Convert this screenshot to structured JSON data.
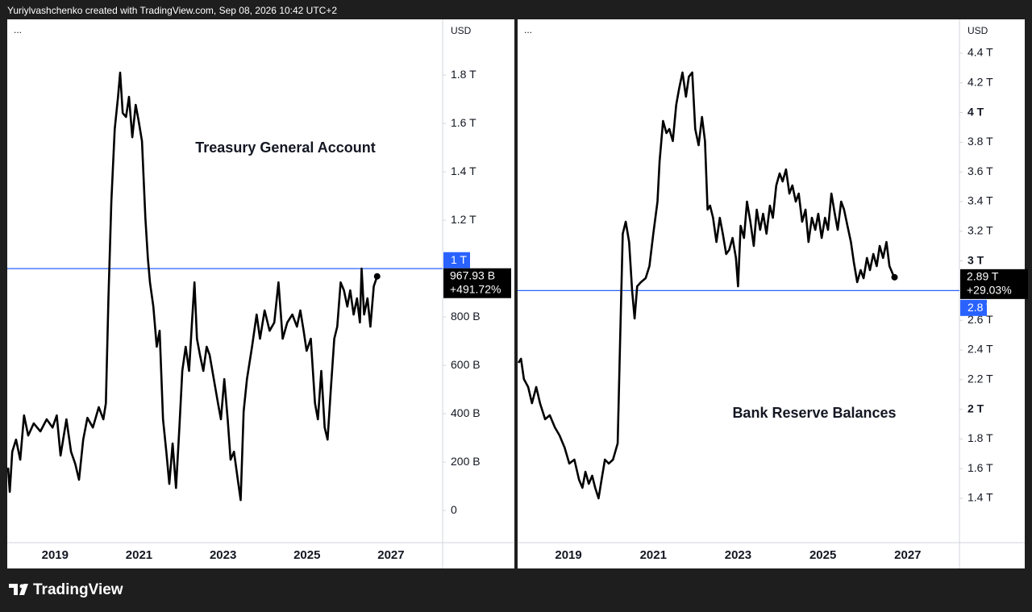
{
  "header": "Yuriylvashchenko created with TradingView.com, Sep 08, 2026 10:42 UTC+2",
  "footer": {
    "logo": "TradingView"
  },
  "chart_data": [
    {
      "type": "line",
      "title": "Treasury General Account",
      "menu": "...",
      "currency": "USD",
      "color": "#000000",
      "x": [
        2017.88,
        2017.92,
        2017.98,
        2018.07,
        2018.17,
        2018.26,
        2018.36,
        2018.49,
        2018.65,
        2018.8,
        2018.94,
        2019.04,
        2019.13,
        2019.27,
        2019.38,
        2019.48,
        2019.57,
        2019.67,
        2019.77,
        2019.9,
        2020.04,
        2020.15,
        2020.21,
        2020.27,
        2020.34,
        2020.42,
        2020.5,
        2020.55,
        2020.61,
        2020.69,
        2020.76,
        2020.84,
        2020.92,
        2020.99,
        2021.07,
        2021.15,
        2021.21,
        2021.26,
        2021.34,
        2021.42,
        2021.49,
        2021.57,
        2021.65,
        2021.72,
        2021.8,
        2021.88,
        2021.96,
        2022.03,
        2022.11,
        2022.19,
        2022.26,
        2022.32,
        2022.38,
        2022.45,
        2022.53,
        2022.61,
        2022.68,
        2022.78,
        2022.88,
        2022.95,
        2023.03,
        2023.11,
        2023.18,
        2023.26,
        2023.34,
        2023.42,
        2023.49,
        2023.57,
        2023.69,
        2023.8,
        2023.88,
        2023.99,
        2024.11,
        2024.22,
        2024.32,
        2024.42,
        2024.53,
        2024.65,
        2024.76,
        2024.84,
        2024.92,
        2024.99,
        2025.09,
        2025.19,
        2025.26,
        2025.34,
        2025.42,
        2025.49,
        2025.57,
        2025.65,
        2025.72,
        2025.8,
        2025.88,
        2025.96,
        2026.03,
        2026.11,
        2026.19,
        2026.26,
        2026.3,
        2026.36,
        2026.44,
        2026.51,
        2026.59,
        2026.67
      ],
      "values": [
        177,
        77,
        243,
        293,
        210,
        393,
        310,
        360,
        327,
        377,
        343,
        393,
        227,
        377,
        243,
        193,
        127,
        293,
        383,
        343,
        427,
        377,
        443,
        877,
        1277,
        1577,
        1710,
        1810,
        1643,
        1627,
        1710,
        1543,
        1677,
        1610,
        1527,
        1210,
        1043,
        943,
        843,
        677,
        743,
        377,
        243,
        110,
        277,
        93,
        343,
        577,
        677,
        577,
        777,
        943,
        710,
        643,
        577,
        677,
        643,
        543,
        443,
        377,
        543,
        377,
        210,
        243,
        143,
        43,
        410,
        543,
        677,
        810,
        710,
        827,
        743,
        777,
        943,
        710,
        777,
        810,
        760,
        827,
        743,
        660,
        710,
        443,
        377,
        577,
        343,
        293,
        510,
        710,
        760,
        943,
        910,
        843,
        910,
        810,
        877,
        777,
        1000,
        810,
        877,
        760,
        927,
        967.93
      ],
      "xlim": [
        2017.88,
        2028.23
      ],
      "xticks": [
        2019,
        2021,
        2023,
        2025,
        2027
      ],
      "ylim": [
        -133,
        2027
      ],
      "yticks": [
        0,
        {
          "value": 200,
          "label": "200 B"
        },
        {
          "value": 400,
          "label": "400 B"
        },
        {
          "value": 600,
          "label": "600 B"
        },
        {
          "value": 800,
          "label": "800 B"
        },
        {
          "value": 1200,
          "label": "1.2 T"
        },
        {
          "value": 1400,
          "label": "1.4 T"
        },
        {
          "value": 1600,
          "label": "1.6 T"
        },
        {
          "value": 1800,
          "label": "1.8 T"
        }
      ],
      "hline": {
        "value": 1000,
        "label": "1 T",
        "color": "#2962ff"
      },
      "last_value": {
        "value": 967.93,
        "label": "967.93 B"
      },
      "change": {
        "value": 491.72,
        "label": "+491.72%"
      }
    },
    {
      "type": "line",
      "title": "Bank Reserve Balances",
      "menu": "...",
      "currency": "USD",
      "color": "#000000",
      "x": [
        2017.82,
        2017.88,
        2017.95,
        2018.05,
        2018.14,
        2018.24,
        2018.33,
        2018.45,
        2018.56,
        2018.68,
        2018.79,
        2018.91,
        2019.02,
        2019.14,
        2019.25,
        2019.33,
        2019.4,
        2019.48,
        2019.56,
        2019.63,
        2019.71,
        2019.78,
        2019.86,
        2019.95,
        2020.05,
        2020.16,
        2020.22,
        2020.28,
        2020.35,
        2020.43,
        2020.5,
        2020.56,
        2020.62,
        2020.71,
        2020.82,
        2020.91,
        2021.0,
        2021.1,
        2021.15,
        2021.23,
        2021.31,
        2021.38,
        2021.46,
        2021.54,
        2021.61,
        2021.69,
        2021.77,
        2021.84,
        2021.92,
        2021.99,
        2022.07,
        2022.15,
        2022.22,
        2022.28,
        2022.34,
        2022.41,
        2022.49,
        2022.57,
        2022.64,
        2022.72,
        2022.79,
        2022.87,
        2022.95,
        2023.0,
        2023.06,
        2023.14,
        2023.21,
        2023.29,
        2023.37,
        2023.44,
        2023.52,
        2023.59,
        2023.67,
        2023.75,
        2023.82,
        2023.9,
        2023.98,
        2024.05,
        2024.13,
        2024.21,
        2024.28,
        2024.36,
        2024.43,
        2024.51,
        2024.59,
        2024.66,
        2024.74,
        2024.82,
        2024.89,
        2024.97,
        2025.05,
        2025.12,
        2025.2,
        2025.28,
        2025.35,
        2025.43,
        2025.5,
        2025.58,
        2025.66,
        2025.73,
        2025.81,
        2025.89,
        2025.96,
        2026.04,
        2026.11,
        2026.19,
        2026.27,
        2026.34,
        2026.42,
        2026.5,
        2026.57,
        2026.65,
        2026.69
      ],
      "values": [
        2313,
        2340,
        2204,
        2150,
        2041,
        2150,
        2041,
        1933,
        1960,
        1878,
        1824,
        1742,
        1634,
        1661,
        1525,
        1471,
        1579,
        1498,
        1552,
        1471,
        1400,
        1525,
        1661,
        1634,
        1661,
        1770,
        2476,
        3183,
        3264,
        3128,
        2802,
        2612,
        2829,
        2857,
        2884,
        2965,
        3183,
        3400,
        3672,
        3943,
        3862,
        3889,
        3808,
        4052,
        4161,
        4270,
        4107,
        4242,
        4270,
        3889,
        3780,
        3971,
        3808,
        3346,
        3373,
        3291,
        3128,
        3291,
        3183,
        3047,
        3074,
        3155,
        3020,
        2829,
        3237,
        3155,
        3400,
        3264,
        3101,
        3346,
        3210,
        3318,
        3183,
        3373,
        3291,
        3509,
        3590,
        3536,
        3617,
        3454,
        3509,
        3400,
        3454,
        3264,
        3346,
        3128,
        3291,
        3210,
        3318,
        3155,
        3291,
        3210,
        3454,
        3318,
        3210,
        3400,
        3346,
        3237,
        3128,
        2992,
        2857,
        2938,
        2884,
        3020,
        2938,
        3047,
        2965,
        3101,
        3020,
        3128,
        2965,
        2911,
        2890
      ],
      "xlim": [
        2017.82,
        2028.22
      ],
      "xticks": [
        2019,
        2021,
        2023,
        2025,
        2027
      ],
      "ylim": [
        1101,
        4623
      ],
      "yticks": [
        {
          "value": 1400,
          "label": "1.4 T"
        },
        {
          "value": 1600,
          "label": "1.6 T"
        },
        {
          "value": 1800,
          "label": "1.8 T"
        },
        {
          "value": 2000,
          "label": "2 T",
          "bold": true
        },
        {
          "value": 2200,
          "label": "2.2 T"
        },
        {
          "value": 2400,
          "label": "2.4 T"
        },
        {
          "value": 2600,
          "label": "2.6 T"
        },
        {
          "value": 3000,
          "label": "3 T",
          "bold": true
        },
        {
          "value": 3200,
          "label": "3.2 T"
        },
        {
          "value": 3400,
          "label": "3.4 T"
        },
        {
          "value": 3600,
          "label": "3.6 T"
        },
        {
          "value": 3800,
          "label": "3.8 T"
        },
        {
          "value": 4000,
          "label": "4 T",
          "bold": true
        },
        {
          "value": 4200,
          "label": "4.2 T"
        },
        {
          "value": 4400,
          "label": "4.4 T"
        }
      ],
      "hline": {
        "value": 2800,
        "label": "2.8 T",
        "color": "#2962ff"
      },
      "last_value": {
        "value": 2890,
        "label": "2.89 T"
      },
      "change": {
        "value": 29.03,
        "label": "+29.03%"
      }
    }
  ]
}
